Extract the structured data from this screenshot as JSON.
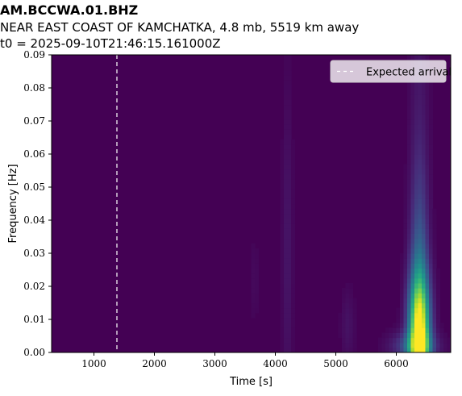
{
  "chart_data": {
    "type": "heatmap",
    "title": "AM.BCCWA.01.BHZ",
    "subtitle": "NEAR EAST COAST OF KAMCHATKA, 4.8 mb, 5519 km away",
    "subtitle2": "t0 = 2025-09-10T21:46:15.161000Z",
    "xlabel": "Time [s]",
    "ylabel": "Frequency [Hz]",
    "xlim": [
      300,
      6900
    ],
    "ylim": [
      0,
      0.09
    ],
    "xticks": [
      1000,
      2000,
      3000,
      4000,
      5000,
      6000
    ],
    "xtick_labels": [
      "1000",
      "2000",
      "3000",
      "4000",
      "5000",
      "6000"
    ],
    "yticks": [
      0,
      0.01,
      0.02,
      0.03,
      0.04,
      0.05,
      0.06,
      0.07,
      0.08,
      0.09
    ],
    "ytick_labels": [
      "0.00",
      "0.01",
      "0.02",
      "0.03",
      "0.04",
      "0.05",
      "0.06",
      "0.07",
      "0.08",
      "0.09"
    ],
    "colormap": "viridis",
    "legend": {
      "label": "Expected arrival",
      "position": "top-right",
      "line_color": "#ffffff",
      "line_style": "dashed"
    },
    "expected_arrival_time": 1380,
    "energy_regions": [
      {
        "t": 6380,
        "f": 0.006,
        "st": 120,
        "sf": 0.012,
        "amp": 0.95
      },
      {
        "t": 6380,
        "f": 0.025,
        "st": 100,
        "sf": 0.02,
        "amp": 0.22
      },
      {
        "t": 6380,
        "f": 0.055,
        "st": 110,
        "sf": 0.04,
        "amp": 0.07
      },
      {
        "t": 6300,
        "f": 0.002,
        "st": 250,
        "sf": 0.003,
        "amp": 0.25
      },
      {
        "t": 4200,
        "f": 0.03,
        "st": 60,
        "sf": 0.035,
        "amp": 0.06
      },
      {
        "t": 5200,
        "f": 0.008,
        "st": 80,
        "sf": 0.008,
        "amp": 0.05
      },
      {
        "t": 3650,
        "f": 0.022,
        "st": 60,
        "sf": 0.01,
        "amp": 0.025
      }
    ],
    "colors": {
      "background": "#440154",
      "legend_bg": "#ffffff"
    }
  }
}
